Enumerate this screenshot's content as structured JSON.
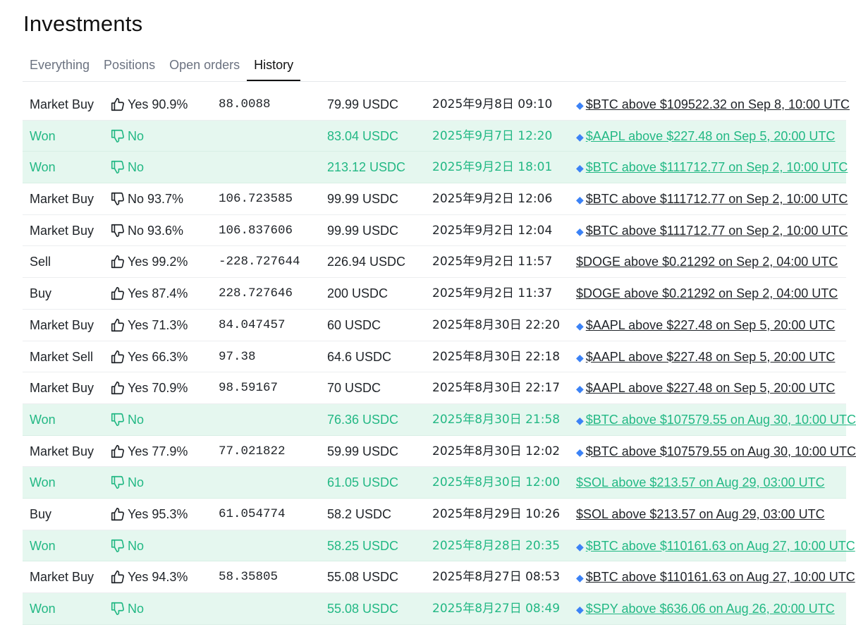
{
  "page": {
    "title": "Investments"
  },
  "tabs": [
    {
      "label": "Everything",
      "active": false
    },
    {
      "label": "Positions",
      "active": false
    },
    {
      "label": "Open orders",
      "active": false
    },
    {
      "label": "History",
      "active": true
    }
  ],
  "colors": {
    "won_bg": "#e5f7ef",
    "won_text": "#22b884",
    "text": "#1f2328",
    "muted": "#6b7280"
  },
  "rows": [
    {
      "type": "Market Buy",
      "side": "Yes",
      "outcome": "Yes 90.9%",
      "shares": "88.0088",
      "amount": "79.99 USDC",
      "time": "2025年9月8日 09:10",
      "market": "$BTC above $109522.32 on Sep 8, 10:00 UTC",
      "gem": true,
      "won": false
    },
    {
      "type": "Won",
      "side": "No",
      "outcome": "No",
      "shares": "",
      "amount": "83.04 USDC",
      "time": "2025年9月7日 12:20",
      "market": "$AAPL above $227.48 on Sep 5, 20:00 UTC",
      "gem": true,
      "won": true
    },
    {
      "type": "Won",
      "side": "No",
      "outcome": "No",
      "shares": "",
      "amount": "213.12 USDC",
      "time": "2025年9月2日 18:01",
      "market": "$BTC above $111712.77 on Sep 2, 10:00 UTC",
      "gem": true,
      "won": true
    },
    {
      "type": "Market Buy",
      "side": "No",
      "outcome": "No 93.7%",
      "shares": "106.723585",
      "amount": "99.99 USDC",
      "time": "2025年9月2日 12:06",
      "market": "$BTC above $111712.77 on Sep 2, 10:00 UTC",
      "gem": true,
      "won": false
    },
    {
      "type": "Market Buy",
      "side": "No",
      "outcome": "No 93.6%",
      "shares": "106.837606",
      "amount": "99.99 USDC",
      "time": "2025年9月2日 12:04",
      "market": "$BTC above $111712.77 on Sep 2, 10:00 UTC",
      "gem": true,
      "won": false
    },
    {
      "type": "Sell",
      "side": "Yes",
      "outcome": "Yes 99.2%",
      "shares": "-228.727644",
      "amount": "226.94 USDC",
      "time": "2025年9月2日 11:57",
      "market": "$DOGE above $0.21292 on Sep 2, 04:00 UTC",
      "gem": false,
      "won": false
    },
    {
      "type": "Buy",
      "side": "Yes",
      "outcome": "Yes 87.4%",
      "shares": "228.727646",
      "amount": "200 USDC",
      "time": "2025年9月2日 11:37",
      "market": "$DOGE above $0.21292 on Sep 2, 04:00 UTC",
      "gem": false,
      "won": false
    },
    {
      "type": "Market Buy",
      "side": "Yes",
      "outcome": "Yes 71.3%",
      "shares": "84.047457",
      "amount": "60 USDC",
      "time": "2025年8月30日 22:20",
      "market": "$AAPL above $227.48 on Sep 5, 20:00 UTC",
      "gem": true,
      "won": false
    },
    {
      "type": "Market Sell",
      "side": "Yes",
      "outcome": "Yes 66.3%",
      "shares": "97.38",
      "amount": "64.6 USDC",
      "time": "2025年8月30日 22:18",
      "market": "$AAPL above $227.48 on Sep 5, 20:00 UTC",
      "gem": true,
      "won": false
    },
    {
      "type": "Market Buy",
      "side": "Yes",
      "outcome": "Yes 70.9%",
      "shares": "98.59167",
      "amount": "70 USDC",
      "time": "2025年8月30日 22:17",
      "market": "$AAPL above $227.48 on Sep 5, 20:00 UTC",
      "gem": true,
      "won": false
    },
    {
      "type": "Won",
      "side": "No",
      "outcome": "No",
      "shares": "",
      "amount": "76.36 USDC",
      "time": "2025年8月30日 21:58",
      "market": "$BTC above $107579.55 on Aug 30, 10:00 UTC",
      "gem": true,
      "won": true
    },
    {
      "type": "Market Buy",
      "side": "Yes",
      "outcome": "Yes 77.9%",
      "shares": "77.021822",
      "amount": "59.99 USDC",
      "time": "2025年8月30日 12:02",
      "market": "$BTC above $107579.55 on Aug 30, 10:00 UTC",
      "gem": true,
      "won": false
    },
    {
      "type": "Won",
      "side": "No",
      "outcome": "No",
      "shares": "",
      "amount": "61.05 USDC",
      "time": "2025年8月30日 12:00",
      "market": "$SOL above $213.57 on Aug 29, 03:00 UTC",
      "gem": false,
      "won": true
    },
    {
      "type": "Buy",
      "side": "Yes",
      "outcome": "Yes 95.3%",
      "shares": "61.054774",
      "amount": "58.2 USDC",
      "time": "2025年8月29日 10:26",
      "market": "$SOL above $213.57 on Aug 29, 03:00 UTC",
      "gem": false,
      "won": false
    },
    {
      "type": "Won",
      "side": "No",
      "outcome": "No",
      "shares": "",
      "amount": "58.25 USDC",
      "time": "2025年8月28日 20:35",
      "market": "$BTC above $110161.63 on Aug 27, 10:00 UTC",
      "gem": true,
      "won": true
    },
    {
      "type": "Market Buy",
      "side": "Yes",
      "outcome": "Yes 94.3%",
      "shares": "58.35805",
      "amount": "55.08 USDC",
      "time": "2025年8月27日 08:53",
      "market": "$BTC above $110161.63 on Aug 27, 10:00 UTC",
      "gem": true,
      "won": false
    },
    {
      "type": "Won",
      "side": "No",
      "outcome": "No",
      "shares": "",
      "amount": "55.08 USDC",
      "time": "2025年8月27日 08:49",
      "market": "$SPY above $636.06 on Aug 26, 20:00 UTC",
      "gem": true,
      "won": true
    }
  ]
}
